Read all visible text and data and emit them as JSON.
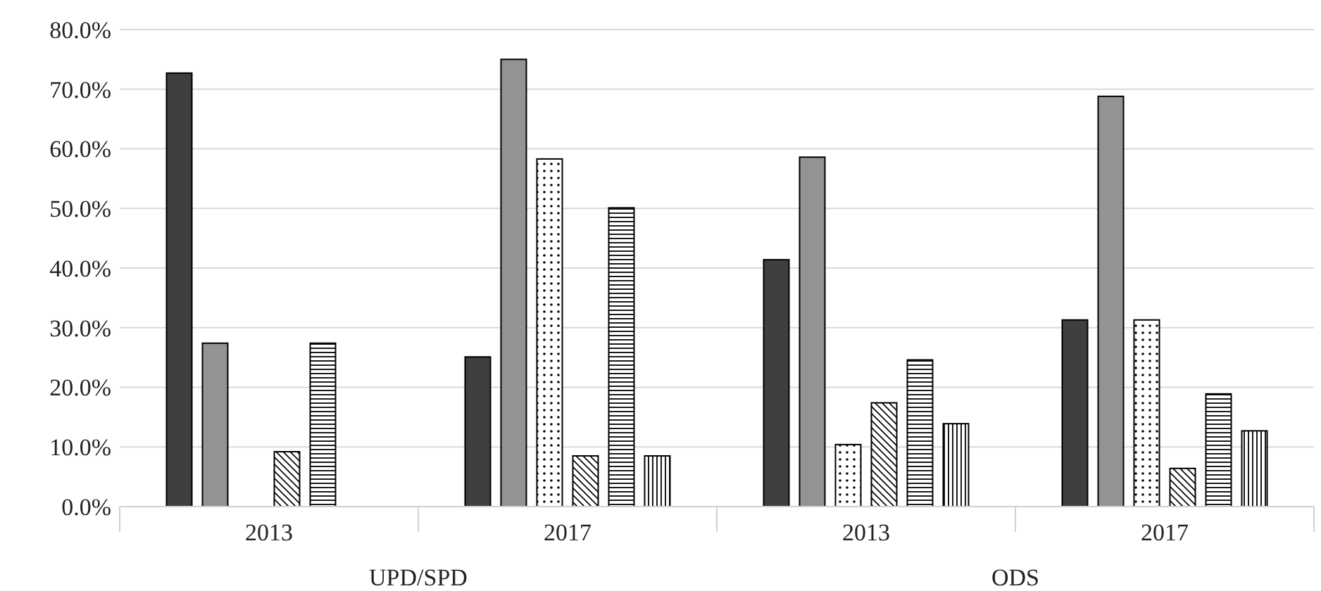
{
  "chart_data": {
    "type": "bar",
    "categories": [
      "2013",
      "2017",
      "2013",
      "2017"
    ],
    "series": [
      {
        "color": "#3f3f41",
        "values": [
          72.7,
          25.1,
          41.4,
          31.3
        ]
      },
      {
        "color": "#939393",
        "values": [
          27.4,
          75.0,
          58.6,
          68.8
        ]
      },
      {
        "color": "#000000",
        "values": [
          null,
          58.3,
          10.4,
          31.3
        ]
      },
      {
        "color": "#000000",
        "values": [
          9.2,
          8.5,
          17.4,
          6.4
        ]
      },
      {
        "color": "#000000",
        "values": [
          27.4,
          50.1,
          24.6,
          18.9
        ]
      },
      {
        "color": "#000000",
        "values": [
          null,
          8.5,
          13.9,
          12.7
        ]
      }
    ],
    "ylim": [
      0,
      80
    ],
    "yticks": [
      {
        "value": 0,
        "label": "0.0%"
      },
      {
        "value": 10,
        "label": "10.0%"
      },
      {
        "value": 20,
        "label": "20.0%"
      },
      {
        "value": 30,
        "label": "30.0%"
      },
      {
        "value": 40,
        "label": "40.0%"
      },
      {
        "value": 50,
        "label": "50.0%"
      },
      {
        "value": 60,
        "label": "60.0%"
      },
      {
        "value": 70,
        "label": "70.0%"
      },
      {
        "value": 80,
        "label": "80.0%"
      }
    ],
    "grid": "y",
    "annotations": [
      "UPD/SPD",
      "ODS"
    ]
  }
}
